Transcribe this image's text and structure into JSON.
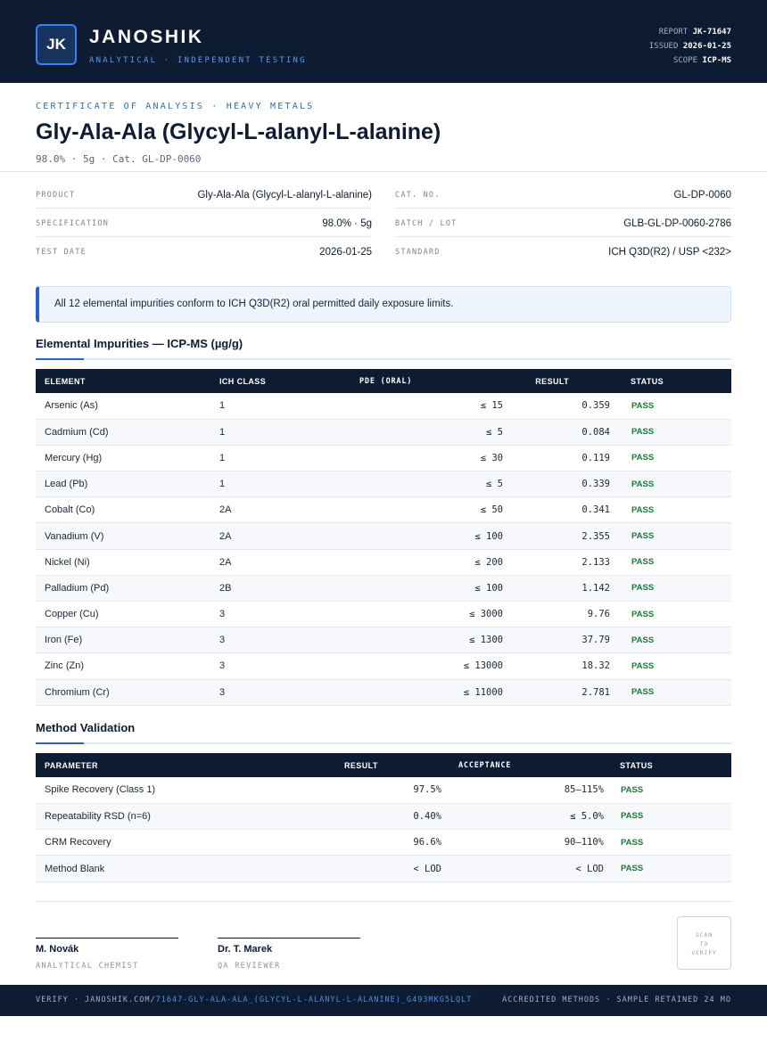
{
  "header": {
    "logo_text": "JK",
    "brand": "JANOSHIK",
    "brand_sub": "ANALYTICAL · INDEPENDENT TESTING",
    "report_label": "REPORT",
    "report_value": "JK-71647",
    "issued_label": "ISSUED",
    "issued_value": "2026-01-25",
    "scope_label": "SCOPE",
    "scope_value": "ICP-MS"
  },
  "title_block": {
    "kicker": "CERTIFICATE OF ANALYSIS · HEAVY METALS",
    "title": "Gly-Ala-Ala (Glycyl-L-alanyl-L-alanine)",
    "subline": "98.0% · 5g  ·  Cat. GL-DP-0060"
  },
  "info": {
    "left": [
      {
        "label": "PRODUCT",
        "value": "Gly-Ala-Ala (Glycyl-L-alanyl-L-alanine)"
      },
      {
        "label": "SPECIFICATION",
        "value": "98.0% · 5g"
      },
      {
        "label": "TEST DATE",
        "value": "2026-01-25"
      }
    ],
    "right": [
      {
        "label": "CAT. NO.",
        "value": "GL-DP-0060"
      },
      {
        "label": "BATCH / LOT",
        "value": "GLB-GL-DP-0060-2786"
      },
      {
        "label": "STANDARD",
        "value": "ICH Q3D(R2) / USP <232>"
      }
    ]
  },
  "notice": "All 12 elemental impurities conform to ICH Q3D(R2) oral permitted daily exposure limits.",
  "impurities": {
    "title": "Elemental Impurities — ICP-MS (µg/g)",
    "headers": [
      "ELEMENT",
      "ICH CLASS",
      "PDE (ORAL)",
      "RESULT",
      "STATUS"
    ],
    "rows": [
      {
        "element": "Arsenic (As)",
        "class": "1",
        "pde": "≤ 15",
        "result": "0.359",
        "status": "PASS"
      },
      {
        "element": "Cadmium (Cd)",
        "class": "1",
        "pde": "≤ 5",
        "result": "0.084",
        "status": "PASS"
      },
      {
        "element": "Mercury (Hg)",
        "class": "1",
        "pde": "≤ 30",
        "result": "0.119",
        "status": "PASS"
      },
      {
        "element": "Lead (Pb)",
        "class": "1",
        "pde": "≤ 5",
        "result": "0.339",
        "status": "PASS"
      },
      {
        "element": "Cobalt (Co)",
        "class": "2A",
        "pde": "≤ 50",
        "result": "0.341",
        "status": "PASS"
      },
      {
        "element": "Vanadium (V)",
        "class": "2A",
        "pde": "≤ 100",
        "result": "2.355",
        "status": "PASS"
      },
      {
        "element": "Nickel (Ni)",
        "class": "2A",
        "pde": "≤ 200",
        "result": "2.133",
        "status": "PASS"
      },
      {
        "element": "Palladium (Pd)",
        "class": "2B",
        "pde": "≤ 100",
        "result": "1.142",
        "status": "PASS"
      },
      {
        "element": "Copper (Cu)",
        "class": "3",
        "pde": "≤ 3000",
        "result": "9.76",
        "status": "PASS"
      },
      {
        "element": "Iron (Fe)",
        "class": "3",
        "pde": "≤ 1300",
        "result": "37.79",
        "status": "PASS"
      },
      {
        "element": "Zinc (Zn)",
        "class": "3",
        "pde": "≤ 13000",
        "result": "18.32",
        "status": "PASS"
      },
      {
        "element": "Chromium (Cr)",
        "class": "3",
        "pde": "≤ 11000",
        "result": "2.781",
        "status": "PASS"
      }
    ]
  },
  "validation": {
    "title": "Method Validation",
    "headers": [
      "PARAMETER",
      "RESULT",
      "ACCEPTANCE",
      "STATUS"
    ],
    "rows": [
      {
        "parameter": "Spike Recovery (Class 1)",
        "result": "97.5%",
        "acceptance": "85–115%",
        "status": "PASS"
      },
      {
        "parameter": "Repeatability RSD (n=6)",
        "result": "0.40%",
        "acceptance": "≤ 5.0%",
        "status": "PASS"
      },
      {
        "parameter": "CRM Recovery",
        "result": "96.6%",
        "acceptance": "90–110%",
        "status": "PASS"
      },
      {
        "parameter": "Method Blank",
        "result": "< LOD",
        "acceptance": "< LOD",
        "status": "PASS"
      }
    ]
  },
  "signatures": [
    {
      "name": "M. Novák",
      "role": "ANALYTICAL CHEMIST"
    },
    {
      "name": "Dr. T. Marek",
      "role": "QA REVIEWER"
    }
  ],
  "qr_lines": [
    "SCAN",
    "TO",
    "VERIFY"
  ],
  "footer": {
    "verify_prefix": "VERIFY · JANOSHIK.COM/",
    "verify_path": "71647-GLY-ALA-ALA_(GLYCYL-L-ALANYL-L-ALANINE)_G493MKG5LQLT",
    "right": "ACCREDITED METHODS · SAMPLE RETAINED 24 MO"
  },
  "colors": {
    "navy": "#0d1b33",
    "accent": "#2563c9",
    "pass": "#1c7a3a"
  }
}
